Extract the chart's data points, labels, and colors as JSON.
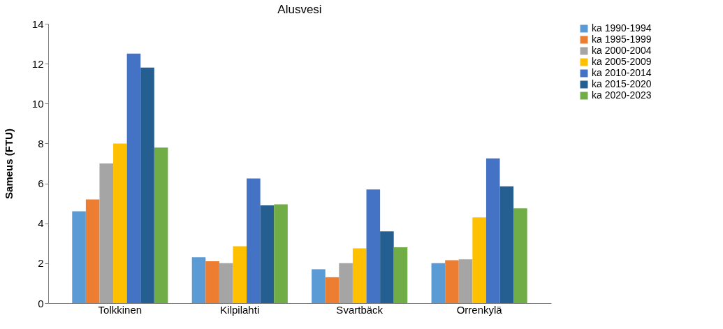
{
  "chart_data": {
    "type": "bar",
    "title": "Alusvesi",
    "ylabel": "Sameus (FTU)",
    "categories": [
      "Tolkkinen",
      "Kilpilahti",
      "Svartbäck",
      "Orrenkylä"
    ],
    "series": [
      {
        "name": "ka 1990-1994",
        "color": "#5b9bd5",
        "values": [
          4.6,
          2.3,
          1.7,
          2.0
        ]
      },
      {
        "name": "ka 1995-1999",
        "color": "#ed7d31",
        "values": [
          5.2,
          2.1,
          1.3,
          2.15
        ]
      },
      {
        "name": "ka 2000-2004",
        "color": "#a5a5a5",
        "values": [
          7.0,
          2.0,
          2.0,
          2.2
        ]
      },
      {
        "name": "ka 2005-2009",
        "color": "#ffc000",
        "values": [
          8.0,
          2.85,
          2.75,
          4.3
        ]
      },
      {
        "name": "ka 2010-2014",
        "color": "#4472c4",
        "values": [
          12.5,
          6.25,
          5.7,
          7.25
        ]
      },
      {
        "name": "ka 2015-2020",
        "color": "#255e91",
        "values": [
          11.8,
          4.9,
          3.6,
          5.85
        ]
      },
      {
        "name": "ka 2020-2023",
        "color": "#70ad47",
        "values": [
          7.8,
          4.95,
          2.8,
          4.75
        ]
      }
    ],
    "ylim": [
      0,
      14
    ],
    "yticks": [
      0,
      2,
      4,
      6,
      8,
      10,
      12,
      14
    ],
    "grid": false,
    "legend": "right"
  }
}
